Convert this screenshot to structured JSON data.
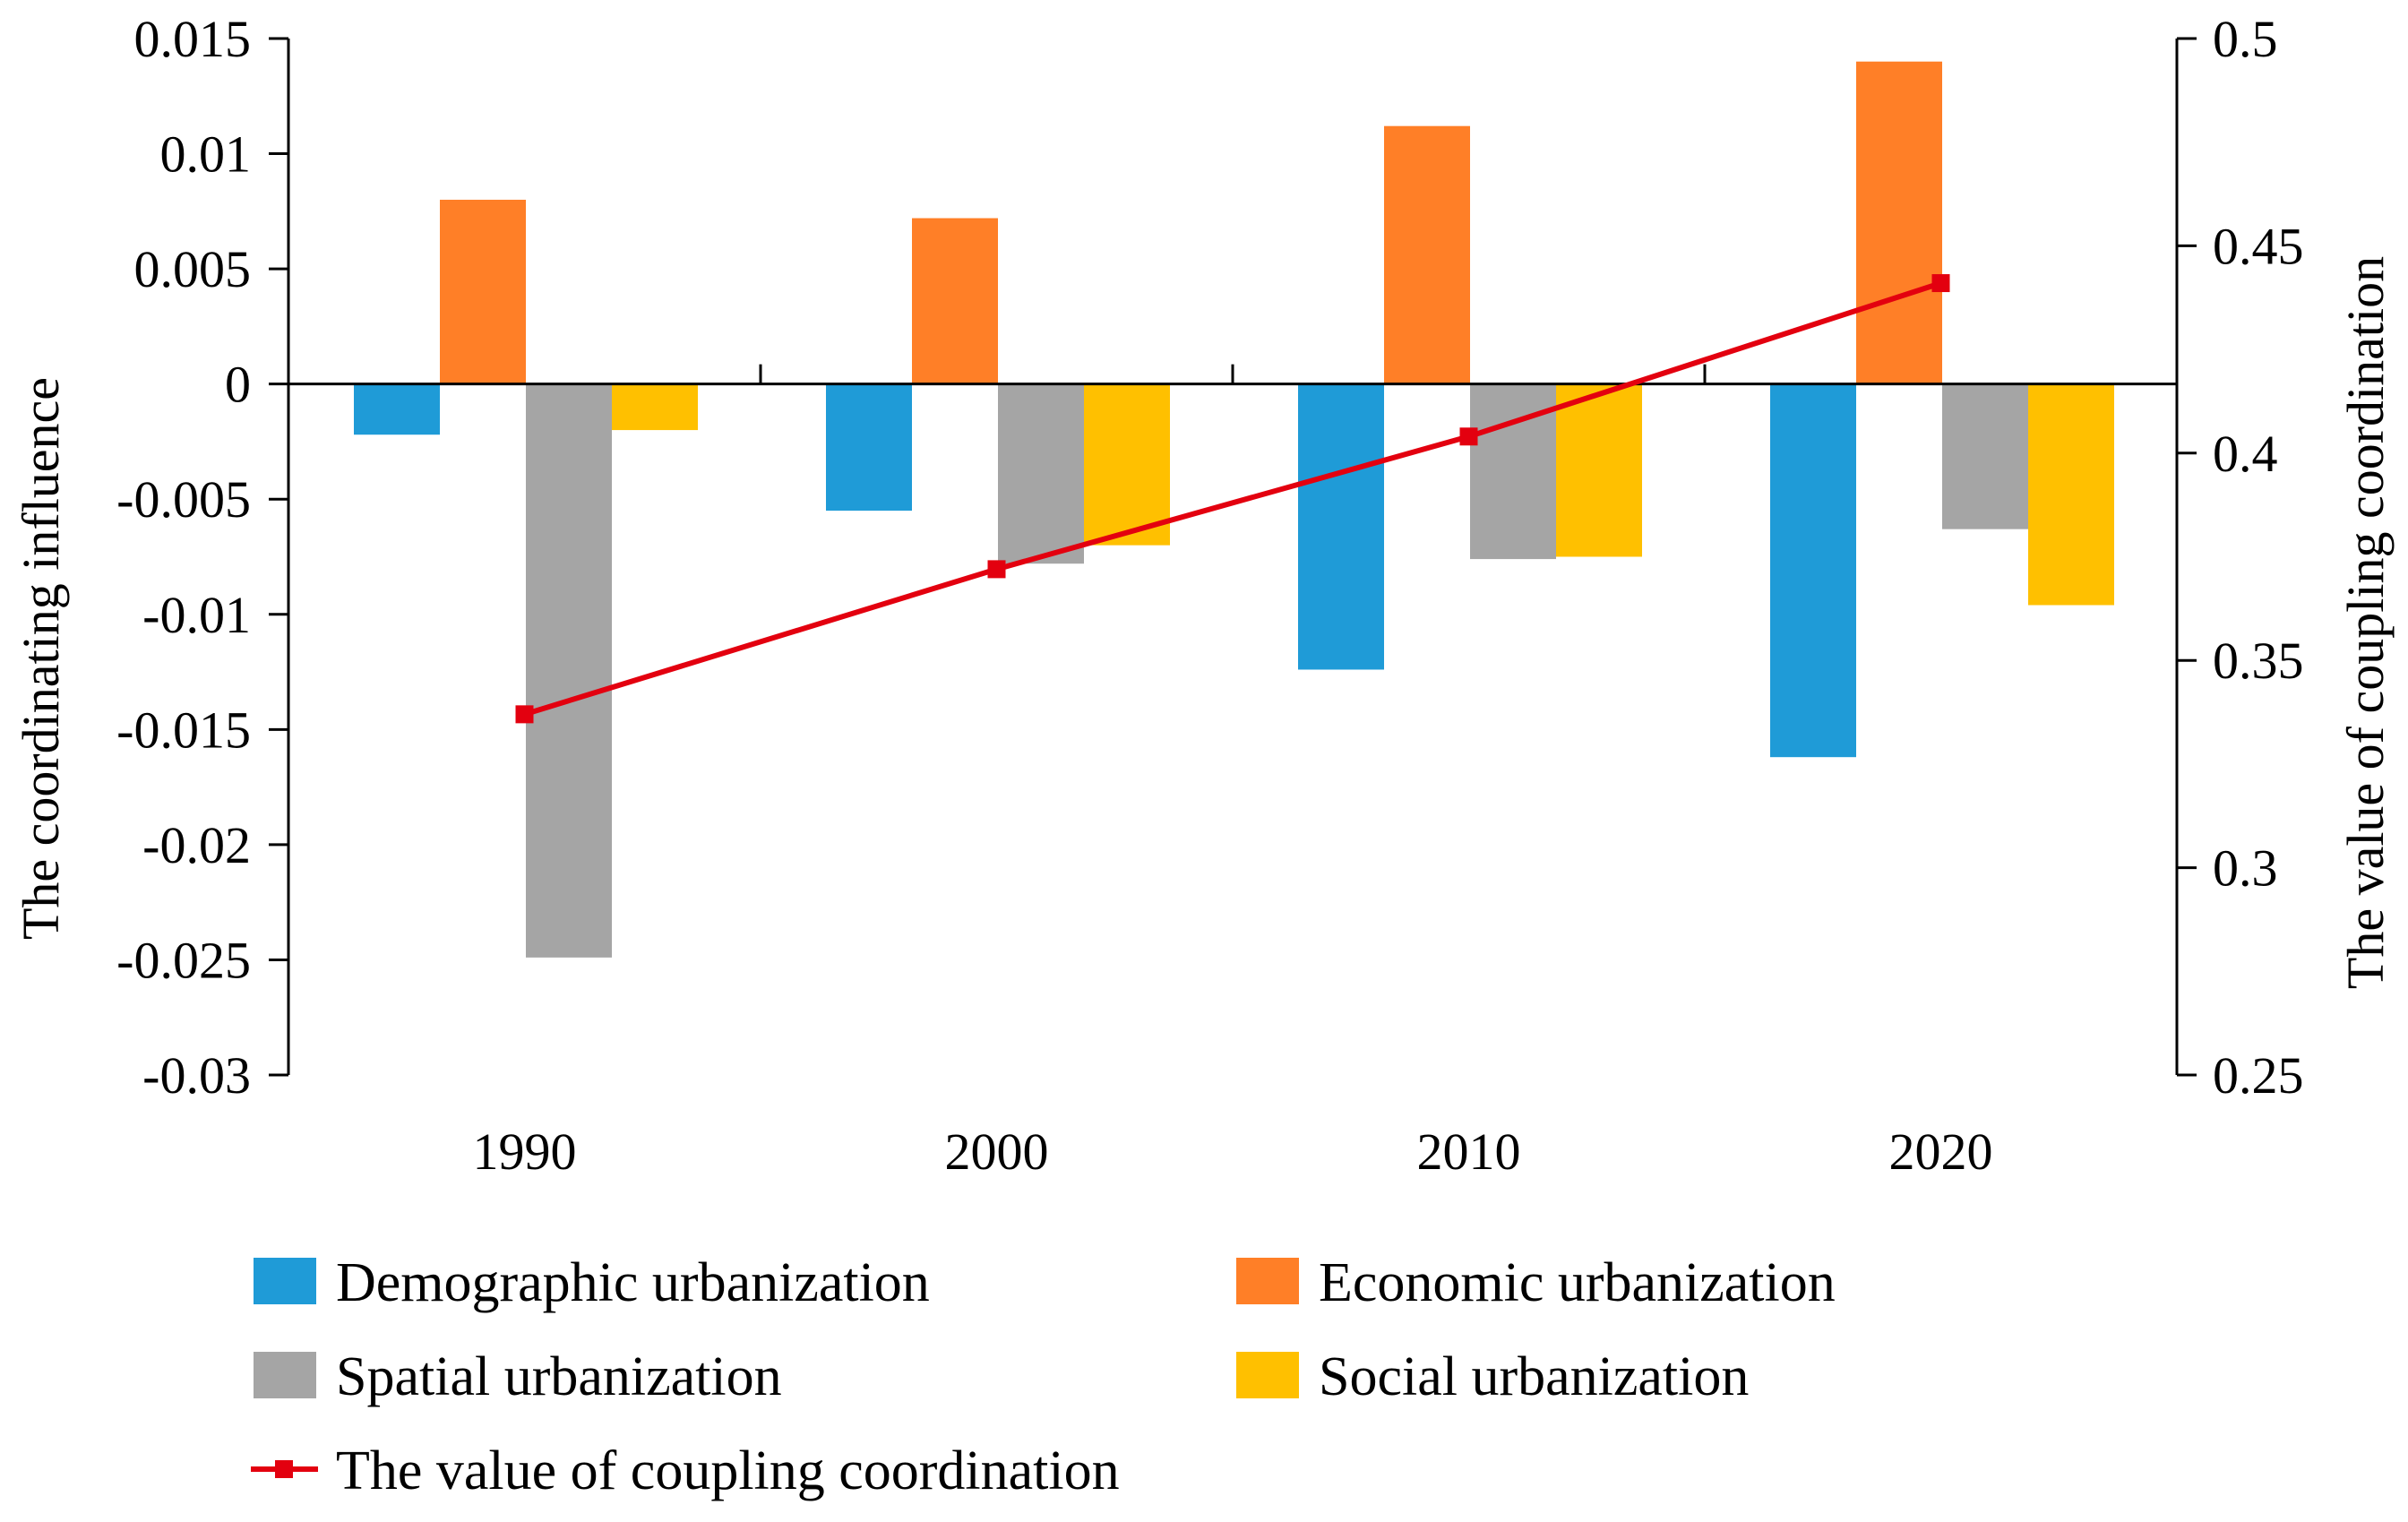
{
  "chart_data": {
    "type": "bar",
    "categories": [
      "1990",
      "2000",
      "2010",
      "2020"
    ],
    "series": [
      {
        "name": "Demographic urbanization",
        "color": "#1f9bd7",
        "values": [
          -0.0022,
          -0.0055,
          -0.0124,
          -0.0162
        ]
      },
      {
        "name": "Economic urbanization",
        "color": "#ff7f27",
        "values": [
          0.008,
          0.0072,
          0.0112,
          0.014
        ]
      },
      {
        "name": "Spatial urbanization",
        "color": "#a5a5a5",
        "values": [
          -0.0249,
          -0.0078,
          -0.0076,
          -0.0063
        ]
      },
      {
        "name": "Social urbanization",
        "color": "#ffc000",
        "values": [
          -0.002,
          -0.007,
          -0.0075,
          -0.0096
        ]
      }
    ],
    "line_series": {
      "name": "The value of coupling coordination",
      "color": "#e3000f",
      "axis": "right",
      "values": [
        0.337,
        0.372,
        0.404,
        0.441
      ]
    },
    "ylabel": "The coordinating influence",
    "y2label": "The  value of coupling coordination",
    "ylim": [
      -0.03,
      0.015
    ],
    "y2lim": [
      0.25,
      0.5
    ],
    "yticks": [
      "0.015",
      "0.01",
      "0.005",
      "0",
      "-0.005",
      "-0.01",
      "-0.015",
      "-0.02",
      "-0.025",
      "-0.03"
    ],
    "y2ticks": [
      "0.5",
      "0.45",
      "0.4",
      "0.35",
      "0.3",
      "0.25"
    ],
    "grid": false,
    "legend_position": "bottom"
  }
}
